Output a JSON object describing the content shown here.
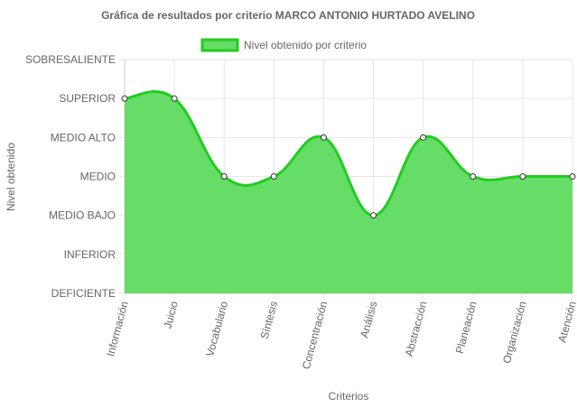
{
  "chart_data": {
    "type": "area",
    "title": "Gráfica de resultados por criterio MARCO ANTONIO HURTADO AVELINO",
    "xlabel": "Criterios",
    "ylabel": "Nivel obtenido",
    "y_levels": [
      "DEFICIENTE",
      "INFERIOR",
      "MEDIO BAJO",
      "MEDIO",
      "MEDIO ALTO",
      "SUPERIOR",
      "SOBRESALIENTE"
    ],
    "ylim": [
      0,
      6
    ],
    "categories": [
      "Información",
      "Juicio",
      "Vocabulario",
      "Síntesis",
      "Concentración",
      "Análisis",
      "Abstracción",
      "Planeación",
      "Organización",
      "Atención"
    ],
    "series": [
      {
        "name": "Nivel obtenido por criterio",
        "values": [
          5,
          5,
          3,
          3,
          4,
          2,
          4,
          3,
          3,
          3
        ]
      }
    ],
    "legend_position": "top",
    "grid": true,
    "colors": {
      "fill": "#66dd66",
      "line": "#22cc22",
      "grid": "#e6e6e6",
      "text": "#666666"
    }
  }
}
